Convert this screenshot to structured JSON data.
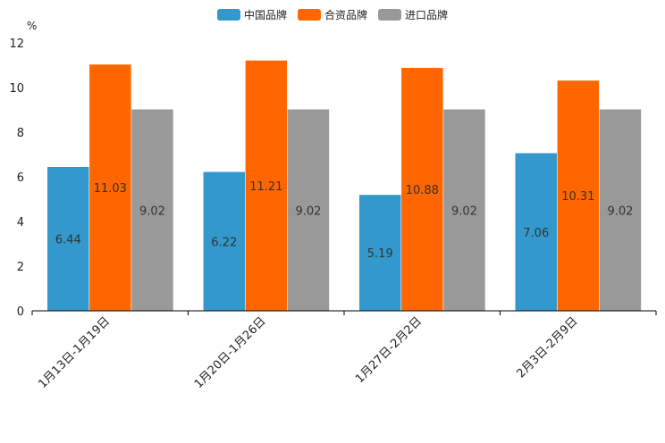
{
  "chart_data": {
    "type": "bar",
    "unit_label": "%",
    "categories": [
      "1月13日-1月19日",
      "1月20日-1月26日",
      "1月27日-2月2日",
      "2月3日-2月9日"
    ],
    "series": [
      {
        "name": "中国品牌",
        "color": "#3399cc",
        "values": [
          6.44,
          6.22,
          5.19,
          7.06
        ]
      },
      {
        "name": "合资品牌",
        "color": "#ff6600",
        "values": [
          11.03,
          11.21,
          10.88,
          10.31
        ]
      },
      {
        "name": "进口品牌",
        "color": "#999999",
        "values": [
          9.02,
          9.02,
          9.02,
          9.02
        ]
      }
    ],
    "yticks": [
      "0",
      "2",
      "4",
      "6",
      "8",
      "10",
      "12"
    ],
    "ylim": [
      0,
      12
    ],
    "value_labels": [
      [
        "6.44",
        "6.22",
        "5.19",
        "7.06"
      ],
      [
        "11.03",
        "11.21",
        "10.88",
        "10.31"
      ],
      [
        "9.02",
        "9.02",
        "9.02",
        "9.02"
      ]
    ],
    "legend_position": "top-center"
  }
}
